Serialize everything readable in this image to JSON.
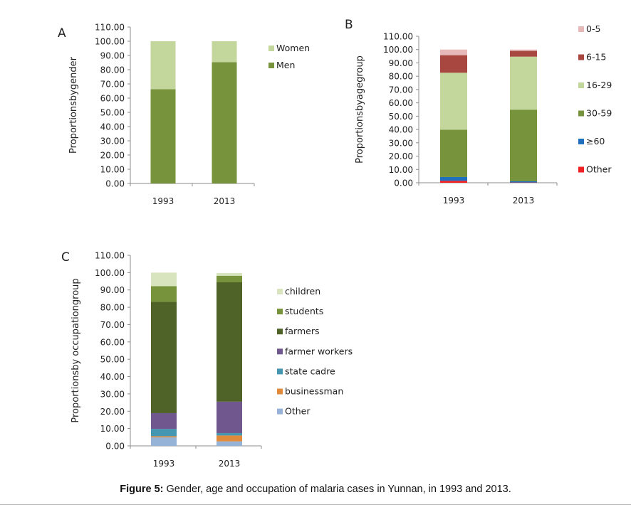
{
  "caption": {
    "label": "Figure 5:",
    "text": " Gender, age and occupation of malaria cases in Yunnan, in 1993 and 2013."
  },
  "chart_data": [
    {
      "panel": "A",
      "type": "bar",
      "stacked": true,
      "title": "",
      "xlabel": "",
      "ylabel": "Proportionsbygender",
      "ylim": [
        0,
        110
      ],
      "yticks": [
        "0.00",
        "10.00",
        "20.00",
        "30.00",
        "40.00",
        "50.00",
        "60.00",
        "70.00",
        "80.00",
        "90.00",
        "100.00",
        "110.00"
      ],
      "categories": [
        "1993",
        "2013"
      ],
      "legend_position": "right",
      "series": [
        {
          "name": "Men",
          "color": "#77933c",
          "values": [
            66.3,
            85.3
          ]
        },
        {
          "name": "Women",
          "color": "#c3d69b",
          "values": [
            33.7,
            14.7
          ]
        }
      ]
    },
    {
      "panel": "B",
      "type": "bar",
      "stacked": true,
      "title": "",
      "xlabel": "",
      "ylabel": "Proportionsbyagegroup",
      "ylim": [
        0,
        110
      ],
      "yticks": [
        "0.00",
        "10.00",
        "20.00",
        "30.00",
        "40.00",
        "50.00",
        "60.00",
        "70.00",
        "80.00",
        "90.00",
        "100.00",
        "110.00"
      ],
      "categories": [
        "1993",
        "2013"
      ],
      "legend_position": "right",
      "series": [
        {
          "name": "Other",
          "color": "#ee2222",
          "values": [
            1.5,
            0.2
          ]
        },
        {
          "name": "≥60",
          "color": "#1f6fbf",
          "values": [
            2.8,
            0.9
          ]
        },
        {
          "name": "30-59",
          "color": "#77933c",
          "values": [
            35.5,
            53.8
          ]
        },
        {
          "name": "16-29",
          "color": "#c3d69b",
          "values": [
            42.8,
            39.8
          ]
        },
        {
          "name": "6-15",
          "color": "#a84640",
          "values": [
            13.2,
            4.3
          ]
        },
        {
          "name": "0-5",
          "color": "#e6b9b8",
          "values": [
            4.2,
            1.0
          ]
        }
      ]
    },
    {
      "panel": "C",
      "type": "bar",
      "stacked": true,
      "title": "",
      "xlabel": "",
      "ylabel": "Proportionsby occupationgroup",
      "ylim": [
        0,
        110
      ],
      "yticks": [
        "0.00",
        "10.00",
        "20.00",
        "30.00",
        "40.00",
        "50.00",
        "60.00",
        "70.00",
        "80.00",
        "90.00",
        "100.00",
        "110.00"
      ],
      "categories": [
        "1993",
        "2013"
      ],
      "legend_position": "right",
      "series": [
        {
          "name": "Other",
          "color": "#95b3d7",
          "values": [
            4.9,
            2.6
          ]
        },
        {
          "name": "businessman",
          "color": "#e08a3c",
          "values": [
            0.7,
            3.4
          ]
        },
        {
          "name": "state cadre",
          "color": "#4596b0",
          "values": [
            4.2,
            1.4
          ]
        },
        {
          "name": "farmer workers",
          "color": "#70588f",
          "values": [
            9.1,
            18.1
          ]
        },
        {
          "name": "farmers",
          "color": "#4f6228",
          "values": [
            64.2,
            68.9
          ]
        },
        {
          "name": "students",
          "color": "#77933c",
          "values": [
            9.1,
            3.8
          ]
        },
        {
          "name": "children",
          "color": "#d7e4bd",
          "values": [
            7.8,
            1.6
          ]
        }
      ]
    }
  ]
}
